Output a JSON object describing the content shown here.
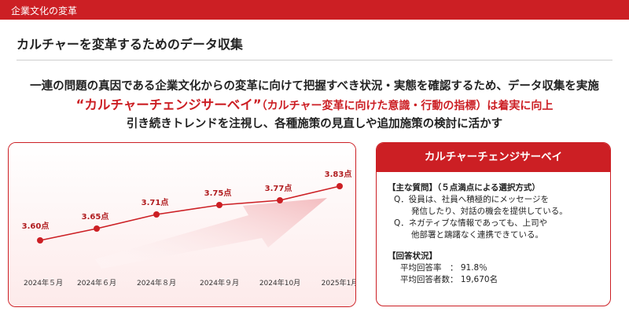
{
  "header": {
    "section": "企業文化の変革"
  },
  "page_title": "カルチャーを変革するためのデータ収集",
  "lead": {
    "line1": "一連の問題の真因である企業文化からの変革に向けて把握すべき状況・実態を確認するため、データ収集を実施",
    "line2_highlight": "“カルチャーチェンジサーベイ”",
    "line2_rest": "（カルチャー変革に向けた意識・行動の指標）は着実に向上",
    "line3": "引き続きトレンドを注視し、各種施策の見直しや追加施策の検討に活かす"
  },
  "chart_data": {
    "type": "line",
    "categories": [
      "2024年５月",
      "2024年６月",
      "2024年８月",
      "2024年９月",
      "2024年10月",
      "2025年1月"
    ],
    "values": [
      3.6,
      3.65,
      3.71,
      3.75,
      3.77,
      3.83
    ],
    "value_labels": [
      "3.60点",
      "3.65点",
      "3.71点",
      "3.75点",
      "3.77点",
      "3.83点"
    ],
    "ylim": [
      3.5,
      3.9
    ],
    "grid": false,
    "title": "",
    "xlabel": "",
    "ylabel": "",
    "colors": {
      "line": "#cc1f24",
      "arrow": "#f6c9cb"
    }
  },
  "survey": {
    "title": "カルチャーチェンジサーベイ",
    "questions_title": "【主な質問】（５点満点による選択方式）",
    "q1_line1": "Q．役員は、社員へ積極的にメッセージを",
    "q1_line2": "発信したり、対話の機会を提供している。",
    "q2_line1": "Q．ネガティブな情報であっても、上司や",
    "q2_line2": "他部署と躊躇なく連携できている。",
    "status_title": "【回答状況】",
    "rate_line": "平均回答率　：  91.8％",
    "count_line": "平均回答者数：  19,670名"
  },
  "colors": {
    "accent": "#cc1f24",
    "text": "#222222"
  }
}
